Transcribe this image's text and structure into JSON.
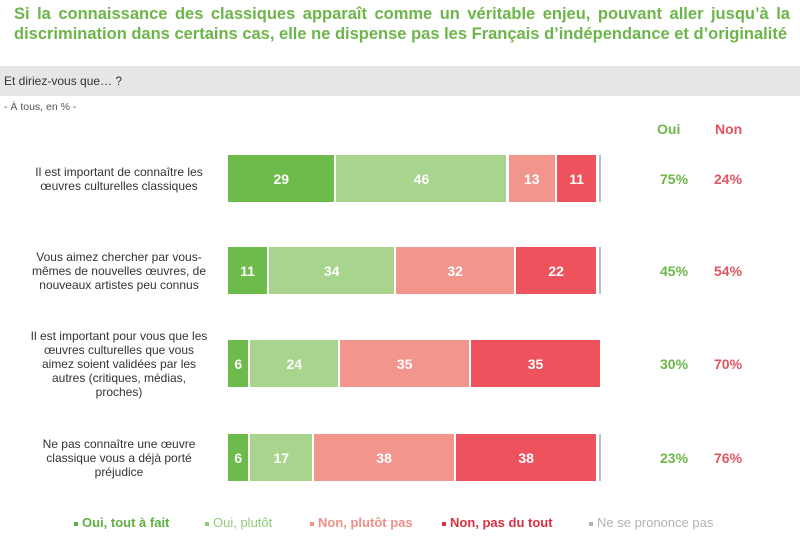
{
  "title": "Si la connaissance des classiques apparaît comme un véritable enjeu, pouvant aller jusqu’à la discrimination dans certains cas, elle ne dispense pas les Français d’indépendance et d’originalité",
  "question": "Et diriez-vous que… ?",
  "base": "- À tous, en % -",
  "columns": {
    "oui": "Oui",
    "non": "Non"
  },
  "colors": {
    "oui_tout_a_fait": "#6dbb4a",
    "oui_plutot": "#a8d48e",
    "non_plutot_pas": "#f2958c",
    "non_pas_du_tout": "#ee525c",
    "nsp": "#bfbfbf"
  },
  "chart_data": {
    "type": "bar",
    "orientation": "horizontal",
    "stacked": true,
    "title": "Et diriez-vous que… ?",
    "xlim": [
      0,
      100
    ],
    "unit": "%",
    "categories": [
      "Il est important de connaître les œuvres culturelles classiques",
      "Vous aimez chercher par vous-mêmes de nouvelles œuvres, de nouveaux artistes peu connus",
      "Il est important pour vous que les œuvres culturelles que vous aimez soient validées par les autres (critiques, médias, proches)",
      "Ne pas connaître une œuvre classique vous a déjà porté préjudice"
    ],
    "series": [
      {
        "name": "Oui, tout à fait",
        "values": [
          29,
          11,
          6,
          6
        ]
      },
      {
        "name": "Oui, plutôt",
        "values": [
          46,
          34,
          24,
          17
        ]
      },
      {
        "name": "Non, plutôt pas",
        "values": [
          13,
          32,
          35,
          38
        ]
      },
      {
        "name": "Non, pas du tout",
        "values": [
          11,
          22,
          35,
          38
        ]
      },
      {
        "name": "Ne se prononce pas",
        "values": [
          1,
          1,
          0,
          1
        ]
      }
    ],
    "totals": {
      "oui": [
        "75%",
        "45%",
        "30%",
        "23%"
      ],
      "non": [
        "24%",
        "54%",
        "70%",
        "76%"
      ]
    },
    "legend_position": "bottom"
  },
  "rows": [
    {
      "label_lines": [
        "Il est important de connaître les",
        "œuvres culturelles classiques"
      ]
    },
    {
      "label_lines": [
        "Vous aimez chercher par vous-",
        "mêmes de nouvelles œuvres, de",
        "nouveaux artistes peu connus"
      ]
    },
    {
      "label_lines": [
        "Il est important pour vous que les",
        "œuvres culturelles que vous",
        "aimez soient validées par les",
        "autres (critiques, médias,",
        "proches)"
      ]
    },
    {
      "label_lines": [
        "Ne pas connaître une œuvre",
        "classique vous a déjà porté",
        "préjudice"
      ]
    }
  ],
  "legend": [
    {
      "label": "Oui, tout à fait",
      "color": "#5fb040"
    },
    {
      "label": "Oui, plutôt",
      "color": "#8fcb76"
    },
    {
      "label": "Non, plutôt pas",
      "color": "#ef8f88"
    },
    {
      "label": "Non, pas du tout",
      "color": "#d9303d"
    },
    {
      "label": "Ne se prononce pas",
      "color": "#b3b3b3"
    }
  ]
}
